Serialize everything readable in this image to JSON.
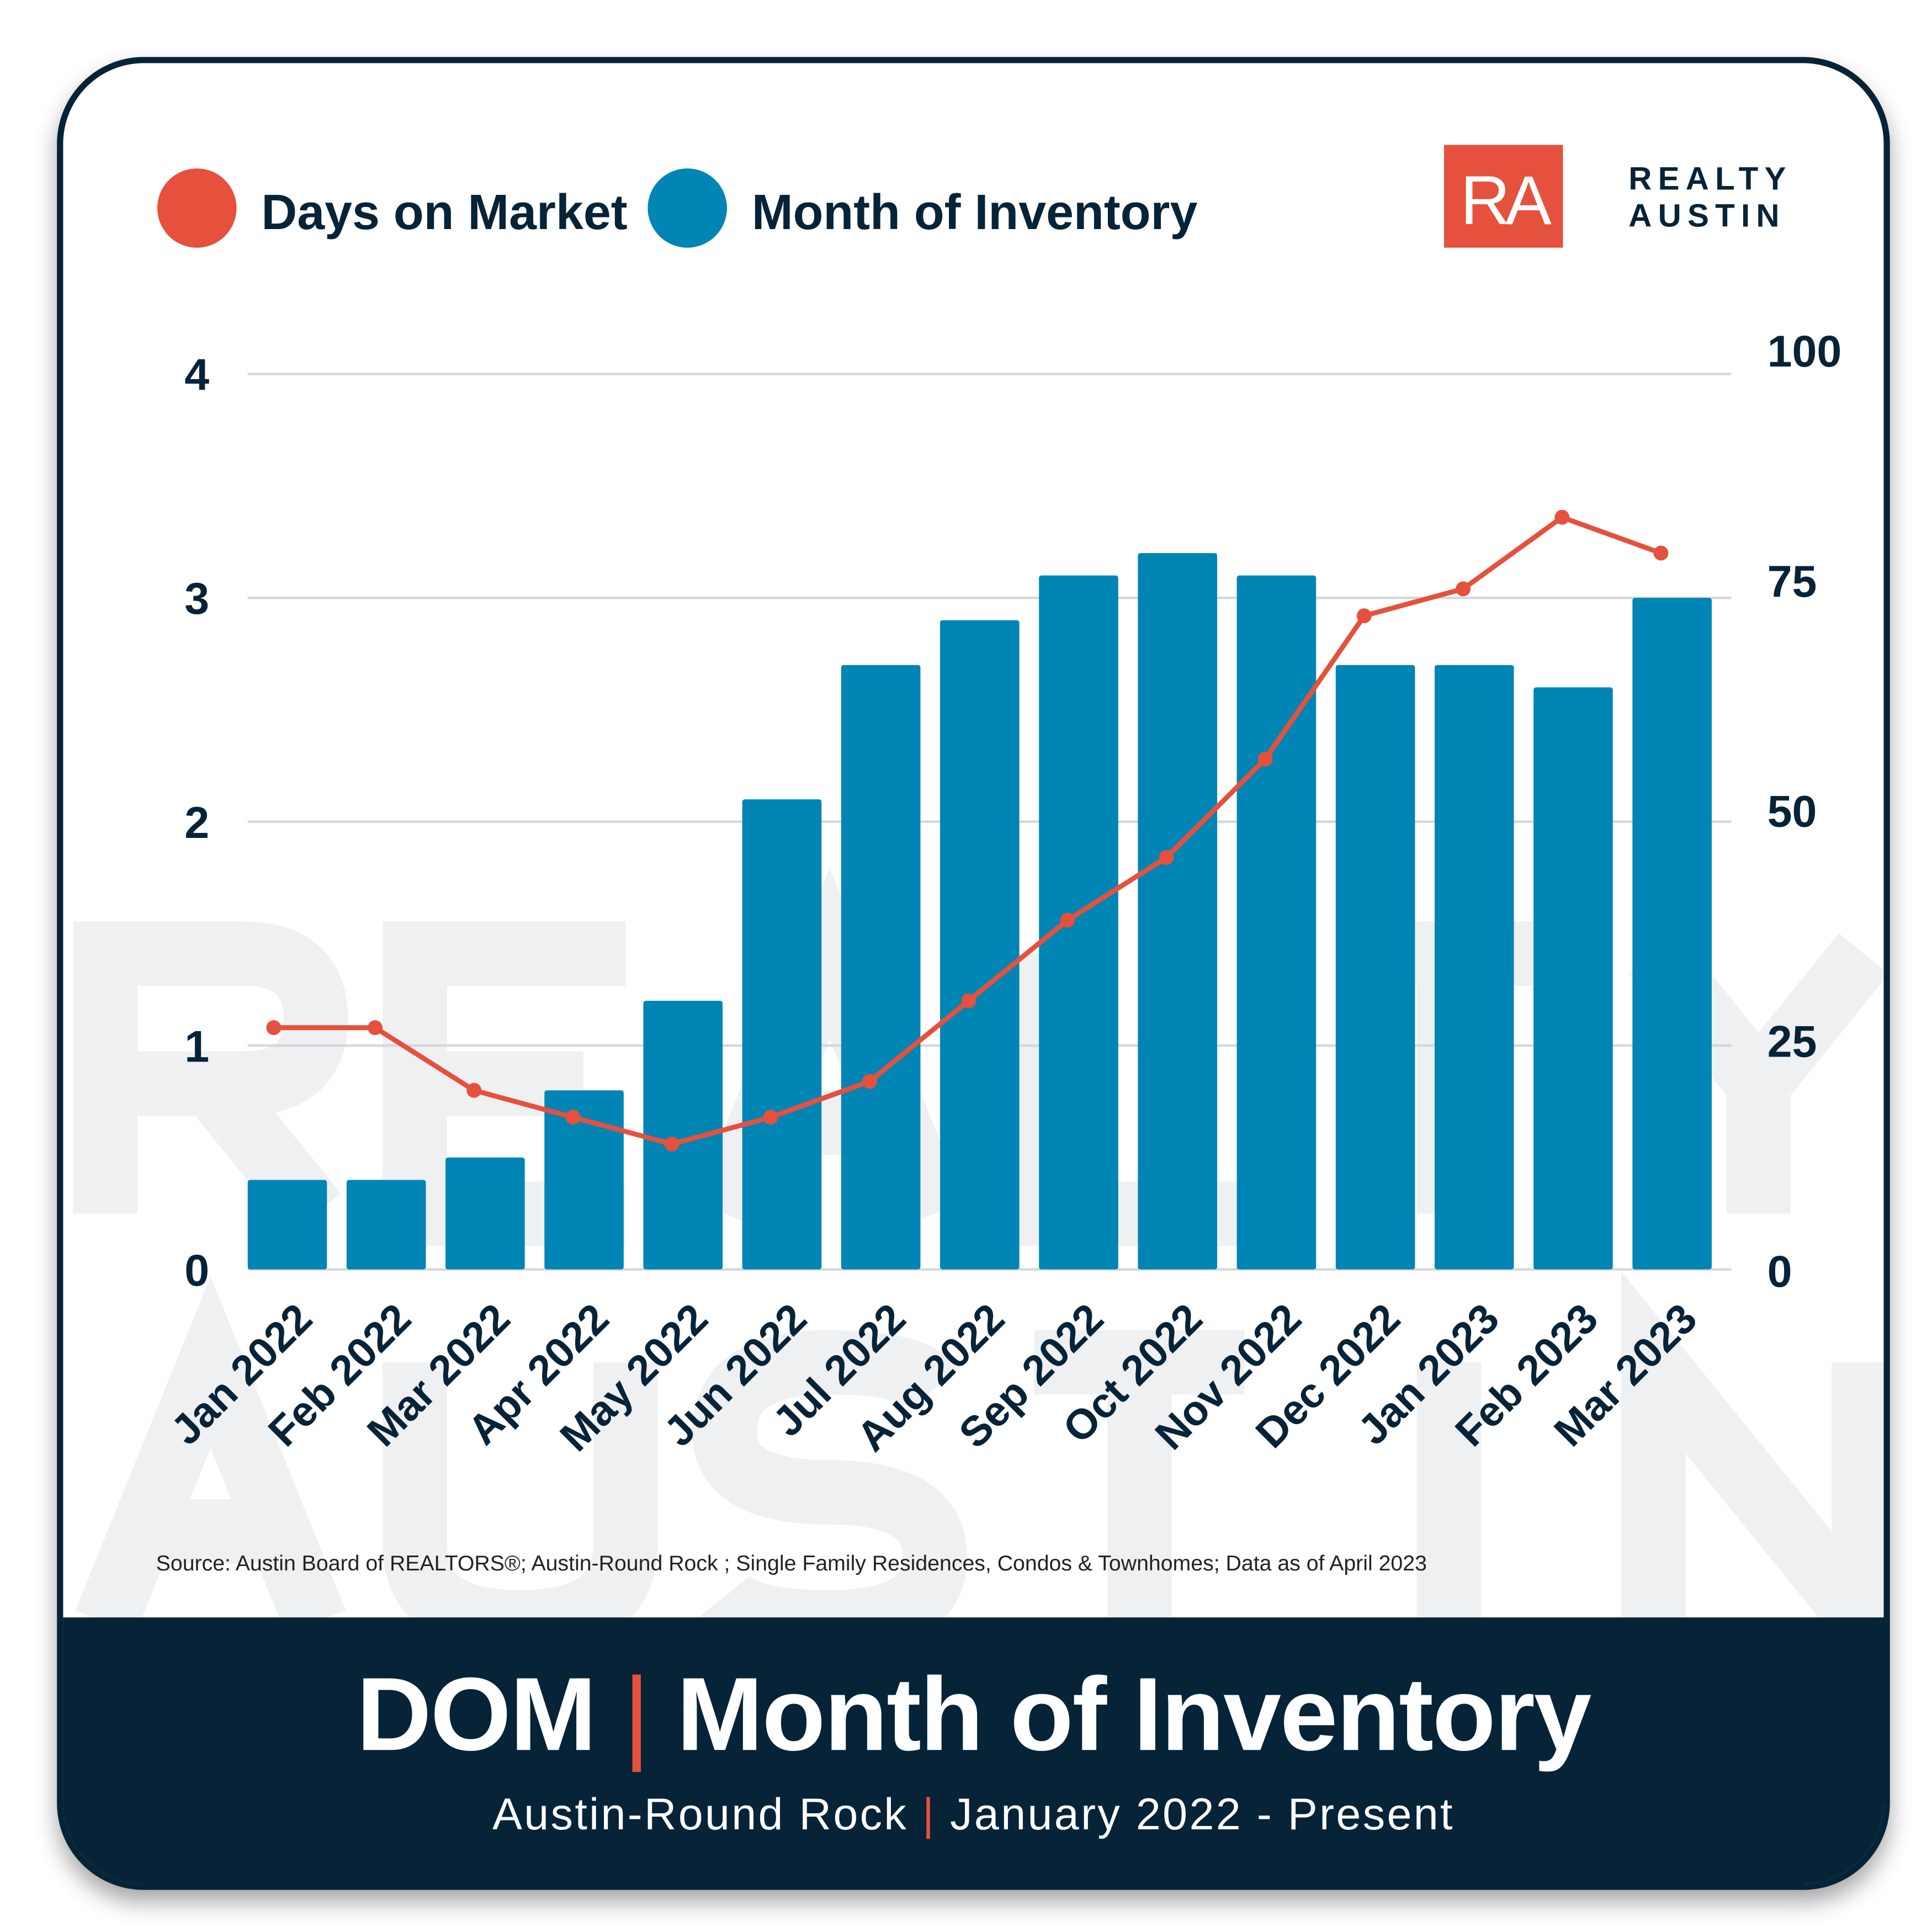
{
  "legend": [
    {
      "label": "Days on Market",
      "color": "#e5513d"
    },
    {
      "label": "Month of Inventory",
      "color": "#0085b4"
    }
  ],
  "logo": {
    "mark": "RA",
    "line1": "REALTY",
    "line2": "AUSTIN",
    "color": "#e5513d",
    "text_color": "#062338"
  },
  "watermark": {
    "line1": "REALTY",
    "line2": "AUSTIN"
  },
  "source": "Source: Austin Board of REALTORS®; Austin-Round Rock ; Single Family Residences, Condos & Townhomes; Data as of April 2023",
  "footer": {
    "title_left": "DOM",
    "divider": "|",
    "title_right": "Month of Inventory",
    "subtitle_left": "Austin-Round Rock",
    "subtitle_divider": "|",
    "subtitle_right": "January 2022 - Present"
  },
  "chart_data": {
    "type": "bar+line",
    "categories": [
      "Jan 2022",
      "Feb 2022",
      "Mar 2022",
      "Apr 2022",
      "May 2022",
      "Jun 2022",
      "Jul 2022",
      "Aug 2022",
      "Sep 2022",
      "Oct 2022",
      "Nov 2022",
      "Dec 2022",
      "Jan 2023",
      "Feb 2023",
      "Mar 2023"
    ],
    "series": [
      {
        "name": "Month of Inventory",
        "type": "bar",
        "axis": "left",
        "color": "#0085b4",
        "values": [
          0.4,
          0.4,
          0.5,
          0.8,
          1.2,
          2.1,
          2.7,
          2.9,
          3.1,
          3.2,
          3.1,
          2.7,
          2.7,
          2.6,
          3.0
        ]
      },
      {
        "name": "Days on Market",
        "type": "line",
        "axis": "right",
        "color": "#e5513d",
        "values": [
          27,
          27,
          20,
          17,
          14,
          17,
          21,
          30,
          39,
          46,
          57,
          73,
          76,
          84,
          80
        ]
      }
    ],
    "left_axis": {
      "ylim": [
        0,
        4
      ],
      "ticks": [
        "0",
        "1",
        "2",
        "3",
        "4"
      ]
    },
    "right_axis": {
      "ylim": [
        0,
        100
      ],
      "ticks": [
        "0",
        "25",
        "50",
        "75",
        "100"
      ]
    },
    "grid": true,
    "legend_position": "top-left"
  }
}
